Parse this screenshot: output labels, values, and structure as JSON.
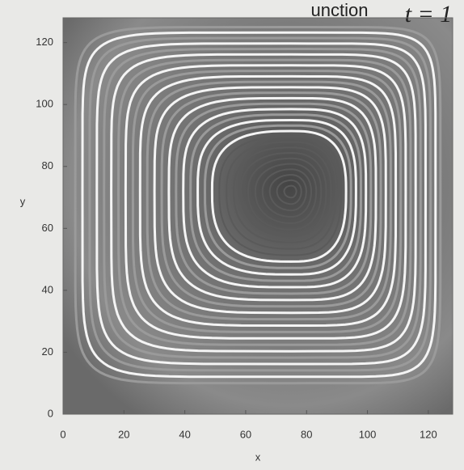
{
  "chart_data": {
    "type": "contour",
    "title": "unction",
    "annotation": "t = 1",
    "x_label": "x",
    "y_label": "y",
    "xlim": [
      0,
      128
    ],
    "ylim": [
      0,
      128
    ],
    "xticks": [
      0,
      20,
      40,
      60,
      80,
      100,
      120
    ],
    "yticks": [
      0,
      20,
      40,
      60,
      80,
      100,
      120
    ]
  }
}
